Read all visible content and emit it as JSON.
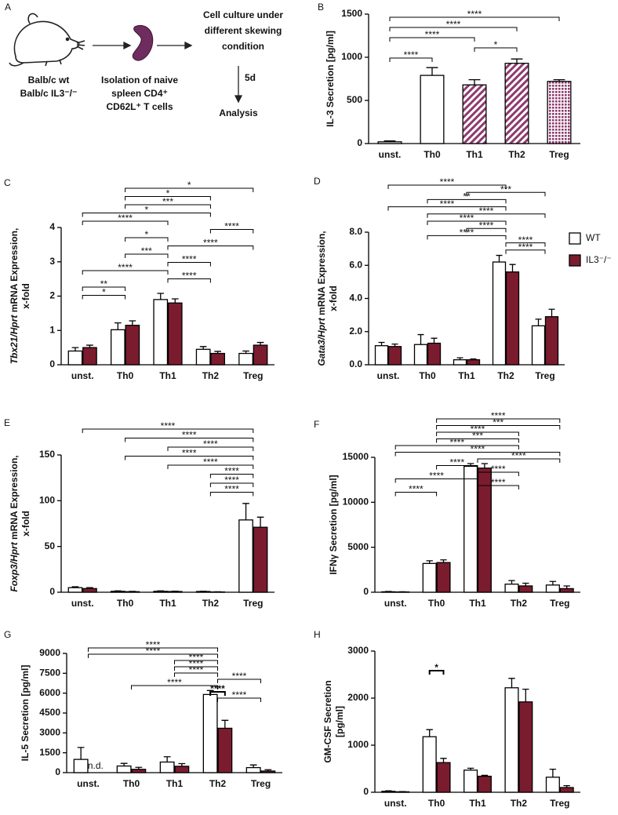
{
  "diagram": {
    "panel": "A",
    "strain_lines": [
      "Balb/c wt",
      "Balb/c IL3⁻/⁻"
    ],
    "isolation_lines": [
      "Isolation of naive",
      "spleen CD4⁺",
      "CD62L⁺ T cells"
    ],
    "culture_lines": [
      "Cell culture under",
      "different skewing",
      "condition"
    ],
    "duration": "5d",
    "analysis": "Analysis"
  },
  "chart_data": [
    {
      "type": "bar",
      "panel": "B",
      "ylabel": [
        [
          {
            "text": "IL-3 Secretion [pg/ml]"
          }
        ]
      ],
      "categories": [
        "unst.",
        "Th0",
        "Th1",
        "Th2",
        "Treg"
      ],
      "values": [
        20,
        790,
        680,
        930,
        720
      ],
      "errors": [
        10,
        90,
        60,
        50,
        20
      ],
      "colors": [
        "#ffffff",
        "#ffffff",
        "#8e3b6e",
        "#8e3b6e",
        "#8e3b6e"
      ],
      "patterns": [
        "solid",
        "solid",
        "hatch",
        "hatch",
        "dots"
      ],
      "ylim": [
        0,
        1500
      ],
      "yticks": [
        0,
        500,
        1000,
        1500
      ],
      "brackets": [
        {
          "between": [
            "unst.",
            "Treg"
          ],
          "label": "****"
        },
        {
          "between": [
            "unst.",
            "Th2"
          ],
          "label": "****"
        },
        {
          "between": [
            "unst.",
            "Th1"
          ],
          "label": "****"
        },
        {
          "between": [
            "Th1",
            "Th2"
          ],
          "label": "*"
        },
        {
          "between": [
            "unst.",
            "Th0"
          ],
          "label": "****"
        }
      ]
    },
    {
      "type": "grouped-bar",
      "panel": "C",
      "ylabel": [
        [
          {
            "text": "Tbx21/Hprt",
            "italic": true
          },
          {
            "text": " mRNA Expression,"
          }
        ],
        [
          {
            "text": "x-fold"
          }
        ]
      ],
      "categories": [
        "unst.",
        "Th0",
        "Th1",
        "Th2",
        "Treg"
      ],
      "series": [
        {
          "name": "WT",
          "color": "#ffffff",
          "values": [
            0.4,
            1.02,
            1.9,
            0.45,
            0.33
          ],
          "errors": [
            0.1,
            0.2,
            0.18,
            0.08,
            0.07
          ]
        },
        {
          "name": "IL3⁻/⁻",
          "color": "#7b1c2e",
          "values": [
            0.5,
            1.15,
            1.8,
            0.33,
            0.57
          ],
          "errors": [
            0.07,
            0.13,
            0.12,
            0.06,
            0.08
          ]
        }
      ],
      "ylim": [
        0,
        4
      ],
      "yticks": [
        0,
        1,
        2,
        3,
        4
      ],
      "brackets": [
        {
          "between": [
            "Th0",
            "Treg"
          ],
          "label": "*"
        },
        {
          "between": [
            "Th0",
            "Th2"
          ],
          "label": "*"
        },
        {
          "between": [
            "Th0",
            "Th2"
          ],
          "label": "***"
        },
        {
          "between": [
            "unst.",
            "Th2"
          ],
          "label": "*"
        },
        {
          "between": [
            "unst.",
            "Th1"
          ],
          "label": "****"
        },
        {
          "between": [
            "Th2",
            "Treg"
          ],
          "label": "****"
        },
        {
          "between": [
            "Th0",
            "Th1"
          ],
          "label": "*"
        },
        {
          "between": [
            "Th1",
            "Treg"
          ],
          "label": "****"
        },
        {
          "between": [
            "Th0",
            "Th1"
          ],
          "label": "***"
        },
        {
          "between": [
            "Th1",
            "Th2"
          ],
          "label": "****"
        },
        {
          "between": [
            "unst.",
            "Th1"
          ],
          "label": "****"
        },
        {
          "between": [
            "Th1",
            "Th2"
          ],
          "label": "****"
        },
        {
          "between": [
            "unst.",
            "Th0"
          ],
          "label": "**"
        },
        {
          "between": [
            "unst.",
            "Th0"
          ],
          "label": "*"
        }
      ]
    },
    {
      "type": "grouped-bar",
      "panel": "D",
      "legend": true,
      "ylabel": [
        [
          {
            "text": "Gata3/Hprt",
            "italic": true
          },
          {
            "text": " mRNA Expression,"
          }
        ],
        [
          {
            "text": "x-fold"
          }
        ]
      ],
      "categories": [
        "unst.",
        "Th0",
        "Th1",
        "Th2",
        "Treg"
      ],
      "series": [
        {
          "name": "WT",
          "color": "#ffffff",
          "values": [
            1.15,
            1.22,
            0.3,
            6.2,
            2.35
          ],
          "errors": [
            0.2,
            0.6,
            0.12,
            0.4,
            0.4
          ]
        },
        {
          "name": "IL3⁻/⁻",
          "color": "#7b1c2e",
          "values": [
            1.1,
            1.3,
            0.3,
            5.6,
            2.9
          ],
          "errors": [
            0.15,
            0.3,
            0.05,
            0.45,
            0.45
          ]
        }
      ],
      "ylim": [
        0,
        8
      ],
      "yticks": [
        {
          "value": 0,
          "label": "0.0"
        },
        {
          "value": 2,
          "label": "2.0"
        },
        {
          "value": 4,
          "label": "4.0"
        },
        {
          "value": 6,
          "label": "6.0"
        },
        {
          "value": 8,
          "label": "8.0"
        }
      ],
      "brackets": [
        {
          "between": [
            "unst.",
            "Th2"
          ],
          "label": "****"
        },
        {
          "between": [
            "Th1",
            "Treg"
          ],
          "label": "***"
        },
        {
          "between": [
            "Th0",
            "Th2"
          ],
          "label": "**"
        },
        {
          "between": [
            "unst.",
            "Th2"
          ],
          "label": "****"
        },
        {
          "between": [
            "Th0",
            "Treg"
          ],
          "label": "****"
        },
        {
          "between": [
            "Th0",
            "Th2"
          ],
          "label": "****"
        },
        {
          "between": [
            "Th1",
            "Th2"
          ],
          "label": "****"
        },
        {
          "between": [
            "Th0",
            "Th2"
          ],
          "label": "****"
        },
        {
          "between": [
            "Th2",
            "Treg"
          ],
          "label": "****"
        },
        {
          "between": [
            "Th2",
            "Treg"
          ],
          "label": "****"
        }
      ]
    },
    {
      "type": "grouped-bar",
      "panel": "E",
      "ylabel": [
        [
          {
            "text": "Foxp3/Hprt",
            "italic": true
          },
          {
            "text": " mRNA Expression,"
          }
        ],
        [
          {
            "text": "x-fold"
          }
        ]
      ],
      "categories": [
        "unst.",
        "Th0",
        "Th1",
        "Th2",
        "Treg"
      ],
      "series": [
        {
          "name": "WT",
          "color": "#ffffff",
          "values": [
            5,
            1,
            1,
            0.8,
            79
          ],
          "errors": [
            1,
            0.5,
            0.5,
            0.3,
            18
          ]
        },
        {
          "name": "IL3⁻/⁻",
          "color": "#7b1c2e",
          "values": [
            4,
            0.6,
            0.8,
            0.3,
            71
          ],
          "errors": [
            1,
            0.3,
            0.4,
            0.2,
            11
          ]
        }
      ],
      "ylim": [
        0,
        150
      ],
      "yticks": [
        0,
        50,
        100,
        150
      ],
      "brackets": [
        {
          "between": [
            "unst.",
            "Treg"
          ],
          "label": "****"
        },
        {
          "between": [
            "Th0",
            "Treg"
          ],
          "label": "****"
        },
        {
          "between": [
            "Th1",
            "Treg"
          ],
          "label": "****"
        },
        {
          "between": [
            "Th0",
            "Treg"
          ],
          "label": "****"
        },
        {
          "between": [
            "Th1",
            "Treg"
          ],
          "label": "****"
        },
        {
          "between": [
            "Th2",
            "Treg"
          ],
          "label": "****"
        },
        {
          "between": [
            "Th2",
            "Treg"
          ],
          "label": "****"
        },
        {
          "between": [
            "Th2",
            "Treg"
          ],
          "label": "****"
        }
      ]
    },
    {
      "type": "grouped-bar",
      "panel": "F",
      "ylabel": [
        [
          {
            "text": "IFNγ Secretion [pg/ml]"
          }
        ]
      ],
      "categories": [
        "unst.",
        "Th0",
        "Th1",
        "Th2",
        "Treg"
      ],
      "series": [
        {
          "name": "WT",
          "color": "#ffffff",
          "values": [
            50,
            3200,
            14000,
            900,
            800
          ],
          "errors": [
            30,
            300,
            300,
            400,
            400
          ]
        },
        {
          "name": "IL3⁻/⁻",
          "color": "#7b1c2e",
          "values": [
            30,
            3300,
            13800,
            700,
            400
          ],
          "errors": [
            20,
            300,
            500,
            300,
            300
          ]
        }
      ],
      "ylim": [
        0,
        15000
      ],
      "yticks": [
        0,
        5000,
        10000,
        15000
      ],
      "brackets": [
        {
          "between": [
            "Th0",
            "Treg"
          ],
          "label": "****"
        },
        {
          "between": [
            "Th0",
            "Treg"
          ],
          "label": "***"
        },
        {
          "between": [
            "Th0",
            "Th2"
          ],
          "label": "****"
        },
        {
          "between": [
            "Th0",
            "Th2"
          ],
          "label": "***"
        },
        {
          "between": [
            "unst.",
            "Th2"
          ],
          "label": "****"
        },
        {
          "between": [
            "unst.",
            "Treg"
          ],
          "label": "****"
        },
        {
          "between": [
            "Th1",
            "Treg"
          ],
          "label": "****"
        },
        {
          "between": [
            "Th0",
            "Th1"
          ],
          "label": "****"
        },
        {
          "between": [
            "Th1",
            "Th2"
          ],
          "label": "****"
        },
        {
          "between": [
            "unst.",
            "Th1"
          ],
          "label": "****"
        },
        {
          "between": [
            "Th1",
            "Th2"
          ],
          "label": "****"
        },
        {
          "between": [
            "unst.",
            "Th0"
          ],
          "label": "****"
        }
      ]
    },
    {
      "type": "grouped-bar",
      "panel": "G",
      "ylabel": [
        [
          {
            "text": "IL-5 Secretion [pg/ml]"
          }
        ]
      ],
      "categories": [
        "unst.",
        "Th0",
        "Th1",
        "Th2",
        "Treg"
      ],
      "series": [
        {
          "name": "WT",
          "color": "#ffffff",
          "values": [
            1000,
            500,
            800,
            5900,
            380
          ],
          "errors": [
            900,
            200,
            400,
            300,
            200
          ]
        },
        {
          "name": "IL3⁻/⁻",
          "color": "#7b1c2e",
          "values": [
            null,
            250,
            480,
            3350,
            120
          ],
          "errors": [
            null,
            150,
            200,
            600,
            100
          ]
        }
      ],
      "annotations": [
        {
          "text": "n.d.",
          "category": "unst."
        }
      ],
      "ylim": [
        0,
        9000
      ],
      "yticks": [
        0,
        1500,
        3000,
        4500,
        6000,
        7500,
        9000
      ],
      "brackets": [
        {
          "between": [
            "unst.",
            "Th2"
          ],
          "label": "****"
        },
        {
          "between": [
            "unst.",
            "Th2"
          ],
          "label": "****"
        },
        {
          "between": [
            "Th1",
            "Th2"
          ],
          "label": "****"
        },
        {
          "between": [
            "Th1",
            "Th2"
          ],
          "label": "****"
        },
        {
          "between": [
            "Th1",
            "Th2"
          ],
          "label": "****"
        },
        {
          "between": [
            "Th2",
            "Treg"
          ],
          "label": "****"
        },
        {
          "between": [
            "Th0",
            "Th2"
          ],
          "label": "****"
        },
        {
          "between": [
            "Th2",
            "Th2"
          ],
          "label": "****"
        },
        {
          "between": [
            "Th2",
            "Treg"
          ],
          "label": "****"
        }
      ]
    },
    {
      "type": "grouped-bar",
      "panel": "H",
      "ylabel": [
        [
          {
            "text": "GM-CSF Secretion"
          }
        ],
        [
          {
            "text": "[pg/ml]"
          }
        ]
      ],
      "categories": [
        "unst.",
        "Th0",
        "Th1",
        "Th2",
        "Treg"
      ],
      "series": [
        {
          "name": "WT",
          "color": "#ffffff",
          "values": [
            20,
            1180,
            470,
            2220,
            320
          ],
          "errors": [
            10,
            150,
            40,
            200,
            170
          ]
        },
        {
          "name": "IL3⁻/⁻",
          "color": "#7b1c2e",
          "values": [
            10,
            630,
            340,
            1920,
            100
          ],
          "errors": [
            5,
            90,
            20,
            270,
            40
          ]
        }
      ],
      "ylim": [
        0,
        3000
      ],
      "yticks": [
        0,
        1000,
        2000,
        3000
      ],
      "brackets": [
        {
          "between": [
            "Th0",
            "Th0"
          ],
          "label": "*"
        }
      ]
    }
  ]
}
